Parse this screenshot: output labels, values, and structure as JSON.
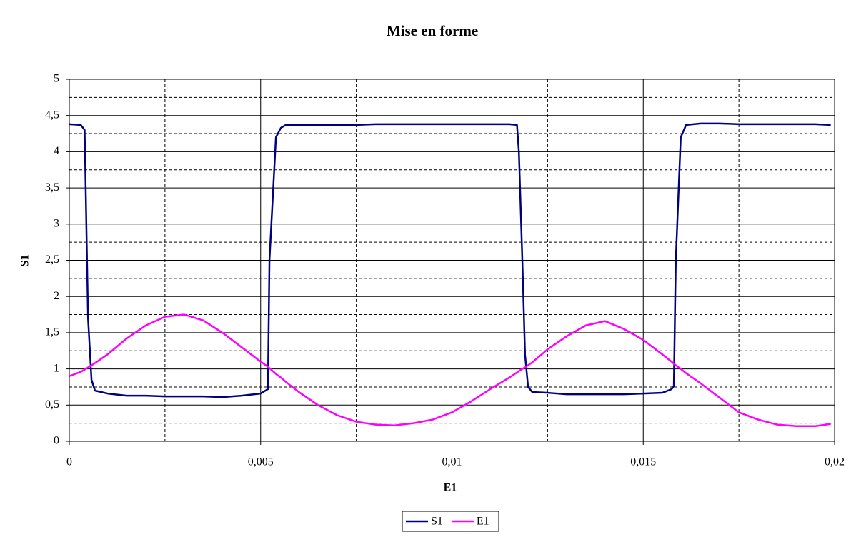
{
  "chart_data": {
    "type": "line",
    "title": "Mise en forme",
    "x_label": "E1",
    "y_label": "S1",
    "x": [
      0,
      0.0003,
      0.0004,
      0.00049,
      0.00058,
      0.00067,
      0.001,
      0.0015,
      0.002,
      0.0025,
      0.003,
      0.0035,
      0.004,
      0.0045,
      0.005,
      0.00519,
      0.00523,
      0.0054,
      0.00553,
      0.00566,
      0.006,
      0.0065,
      0.007,
      0.0075,
      0.008,
      0.0085,
      0.009,
      0.0095,
      0.01,
      0.0105,
      0.011,
      0.0115,
      0.0117,
      0.01175,
      0.01184,
      0.01191,
      0.01199,
      0.0121,
      0.0125,
      0.013,
      0.0135,
      0.014,
      0.0145,
      0.015,
      0.0155,
      0.01574,
      0.0158,
      0.01585,
      0.01598,
      0.01612,
      0.0165,
      0.017,
      0.0175,
      0.018,
      0.0185,
      0.019,
      0.0195,
      0.0199
    ],
    "series": [
      {
        "name": "S1",
        "color": "#000080",
        "values": [
          4.38,
          4.37,
          4.3,
          1.7,
          0.85,
          0.7,
          0.66,
          0.63,
          0.63,
          0.62,
          0.62,
          0.62,
          0.61,
          0.63,
          0.66,
          0.72,
          2.5,
          4.2,
          4.33,
          4.37,
          4.37,
          4.37,
          4.37,
          4.37,
          4.38,
          4.38,
          4.38,
          4.38,
          4.38,
          4.38,
          4.38,
          4.38,
          4.37,
          4.0,
          2.5,
          1.2,
          0.75,
          0.68,
          0.67,
          0.65,
          0.65,
          0.65,
          0.65,
          0.66,
          0.67,
          0.72,
          0.76,
          2.5,
          4.2,
          4.37,
          4.39,
          4.39,
          4.38,
          4.38,
          4.38,
          4.38,
          4.38,
          4.37
        ]
      },
      {
        "name": "E1",
        "color": "#ff00ff",
        "values": [
          0.9,
          0.96,
          0.99,
          1.02,
          1.05,
          1.08,
          1.2,
          1.42,
          1.6,
          1.72,
          1.75,
          1.67,
          1.5,
          1.3,
          1.1,
          1.03,
          1.01,
          0.93,
          0.88,
          0.82,
          0.68,
          0.5,
          0.36,
          0.27,
          0.23,
          0.22,
          0.25,
          0.3,
          0.4,
          0.55,
          0.72,
          0.88,
          0.95,
          0.97,
          1.0,
          1.02,
          1.05,
          1.09,
          1.27,
          1.45,
          1.6,
          1.66,
          1.55,
          1.4,
          1.2,
          1.1,
          1.07,
          1.05,
          1.0,
          0.94,
          0.8,
          0.6,
          0.4,
          0.3,
          0.23,
          0.21,
          0.21,
          0.24
        ]
      }
    ],
    "xlim": [
      0,
      0.02
    ],
    "xticks": [
      0,
      {
        "value": 0.005,
        "label": "0,005"
      },
      {
        "value": 0.01,
        "label": "0,01"
      },
      {
        "value": 0.015,
        "label": "0,015"
      },
      {
        "value": 0.02,
        "label": "0,02"
      }
    ],
    "xminor": [
      0.0025,
      0.0075,
      0.0125,
      0.0175
    ],
    "ylim": [
      0,
      5
    ],
    "yticks": [
      0,
      {
        "value": 0.5,
        "label": "0,5"
      },
      1,
      {
        "value": 1.5,
        "label": "1,5"
      },
      2,
      {
        "value": 2.5,
        "label": "2,5"
      },
      3,
      {
        "value": 3.5,
        "label": "3,5"
      },
      4,
      {
        "value": 4.5,
        "label": "4,5"
      },
      5
    ],
    "yminor": [
      0.25,
      0.75,
      1.25,
      1.75,
      2.25,
      2.75,
      3.25,
      3.75,
      4.25,
      4.75
    ],
    "grid": true,
    "legend": "bottom"
  }
}
